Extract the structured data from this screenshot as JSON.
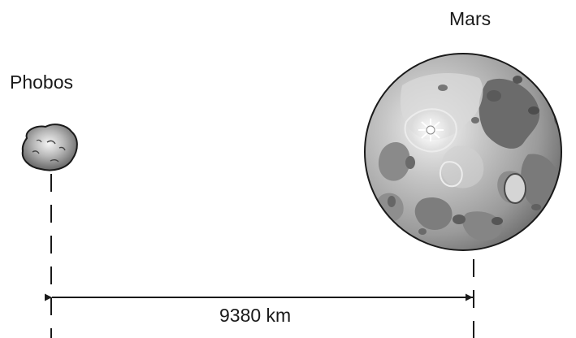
{
  "labels": {
    "phobos": "Phobos",
    "mars": "Mars",
    "distance": "9380 km"
  },
  "colors": {
    "ink": "#1a1a1a",
    "phobos_surface": "#8a8a8a",
    "mars_surface": "#9d9d9d",
    "mars_dark": "#6e6e6e",
    "mars_highlight": "#f2f2f2"
  }
}
